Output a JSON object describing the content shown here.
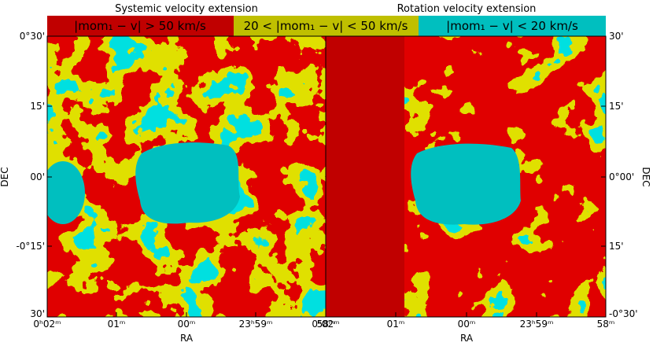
{
  "panels": [
    {
      "title": "Systemic velocity extension",
      "y_ticks": [
        "0°30'",
        "15'",
        "00'",
        "-0°15'",
        "30'"
      ],
      "x_ticks": [
        "0ʰ02ᵐ",
        "01ᵐ",
        "00ᵐ",
        "23ʰ59ᵐ",
        "58ᵐ"
      ],
      "x_label": "RA",
      "y_label": "DEC"
    },
    {
      "title": "Rotation velocity extension",
      "y_ticks": [
        "30'",
        "15'",
        "0°00'",
        "15'",
        "-0°30'"
      ],
      "x_ticks": [
        "0ʰ02ᵐ",
        "01ᵐ",
        "00ᵐ",
        "23ʰ59ᵐ",
        "58ᵐ"
      ],
      "x_label": "RA",
      "y_label": "DEC"
    }
  ],
  "legend": [
    "|mom₁ − v| > 50 km/s",
    "20 < |mom₁ − v| < 50 km/s",
    "|mom₁ − v| < 20 km/s"
  ]
}
